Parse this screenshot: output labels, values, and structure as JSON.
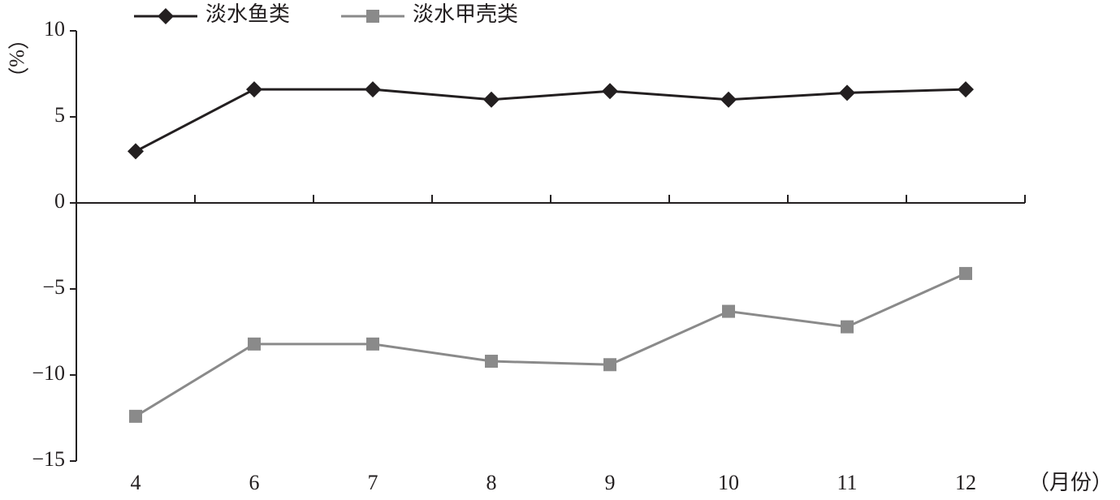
{
  "chart_data": {
    "type": "line",
    "y_label": "（%）",
    "x_label": "（月份）",
    "categories": [
      "4",
      "6",
      "7",
      "8",
      "9",
      "10",
      "11",
      "12"
    ],
    "series": [
      {
        "name": "淡水鱼类",
        "color": "#231f20",
        "marker": "diamond",
        "values": [
          3.0,
          6.6,
          6.6,
          6.0,
          6.5,
          6.0,
          6.4,
          6.6
        ]
      },
      {
        "name": "淡水甲壳类",
        "color": "#8a8a8a",
        "marker": "square",
        "values": [
          -12.4,
          -8.2,
          -8.2,
          -9.2,
          -9.4,
          -6.3,
          -7.2,
          -4.1
        ]
      }
    ],
    "ylim": [
      -15,
      10
    ],
    "yticks": [
      {
        "value": -15,
        "label": "−15"
      },
      {
        "value": -10,
        "label": "−10"
      },
      {
        "value": -5,
        "label": "−5"
      },
      0,
      5,
      10
    ],
    "grid": false
  }
}
